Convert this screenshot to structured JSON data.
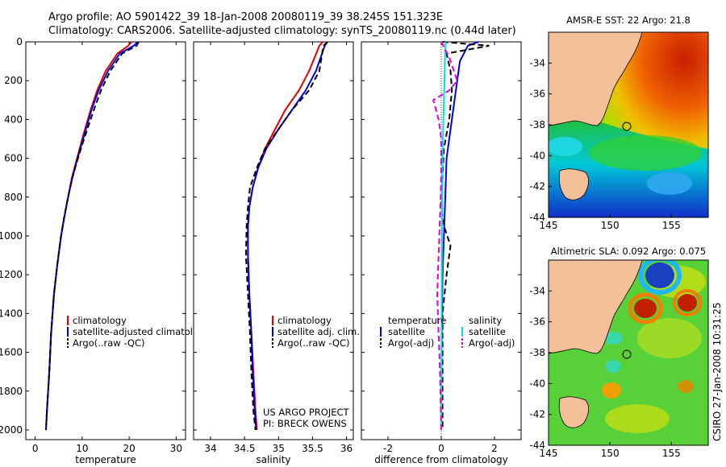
{
  "header": {
    "title_line1": "Argo profile: AO 5901422_39 18-Jan-2008 20080119_39 38.245S 151.323E",
    "title_line2": "Climatology: CARS2006. Satellite-adjusted climatology: synTS_20080119.nc (0.44d later)"
  },
  "footer_credit": "CSIRO 27-Jan-2008 10:31:25",
  "project_note": {
    "line1": "US ARGO PROJECT",
    "line2": "PI: BRECK OWENS"
  },
  "colors": {
    "climatology": "#e00000",
    "satellite": "#0000e0",
    "argo": "#000000",
    "sal_satellite": "#00e0e0",
    "sal_argo": "#e000e0",
    "land": "#f4c09a"
  },
  "chart_data": [
    {
      "type": "line",
      "id": "temperature",
      "xlabel": "temperature",
      "ylabel": "",
      "xlim": [
        -2,
        32
      ],
      "ylim": [
        2050,
        0
      ],
      "xticks": [
        0,
        10,
        20,
        30
      ],
      "yticks": [
        0,
        200,
        400,
        600,
        800,
        1000,
        1200,
        1400,
        1600,
        1800,
        2000
      ],
      "legend": [
        "climatology",
        "satellite-adjusted climatology",
        "Argo(..raw -QC)"
      ],
      "series": [
        {
          "name": "climatology",
          "style": "solid",
          "color_key": "climatology",
          "x": [
            20.5,
            19.8,
            17.5,
            15.0,
            13.2,
            11.8,
            10.0,
            8.9,
            7.8,
            7.0,
            6.2,
            5.5,
            4.7,
            4.0,
            3.4,
            3.0,
            2.5,
            2.3
          ],
          "y": [
            0,
            20,
            60,
            150,
            250,
            350,
            500,
            600,
            700,
            800,
            900,
            1000,
            1150,
            1300,
            1500,
            1700,
            1900,
            2000
          ]
        },
        {
          "name": "satellite-adjusted climatology",
          "style": "solid",
          "color_key": "satellite",
          "x": [
            21.8,
            21.0,
            18.0,
            15.5,
            13.5,
            12.0,
            10.2,
            9.0,
            7.9,
            7.0,
            6.2,
            5.5,
            4.7,
            4.0,
            3.4,
            3.0,
            2.5,
            2.3
          ],
          "y": [
            0,
            20,
            60,
            150,
            250,
            350,
            500,
            600,
            700,
            800,
            900,
            1000,
            1150,
            1300,
            1500,
            1700,
            1900,
            2000
          ]
        },
        {
          "name": "Argo(..raw -QC)",
          "style": "dashed",
          "color_key": "argo",
          "x": [
            22.0,
            21.6,
            18.5,
            16.0,
            14.0,
            12.5,
            10.4,
            9.1,
            7.9,
            7.0,
            6.2,
            5.5,
            4.7,
            4.0,
            3.4,
            3.0,
            2.5,
            2.3
          ],
          "y": [
            0,
            20,
            60,
            150,
            250,
            350,
            500,
            600,
            700,
            800,
            900,
            1000,
            1150,
            1300,
            1500,
            1700,
            1900,
            2000
          ]
        }
      ]
    },
    {
      "type": "line",
      "id": "salinity",
      "xlabel": "salinity",
      "ylabel": "",
      "xlim": [
        33.75,
        36.1
      ],
      "ylim": [
        2050,
        0
      ],
      "xticks": [
        34,
        34.5,
        35,
        35.5,
        36
      ],
      "legend": [
        "climatology",
        "satellite adj. clim.",
        "Argo(..raw -QC)"
      ],
      "series": [
        {
          "name": "climatology",
          "style": "solid",
          "color_key": "climatology",
          "x": [
            35.65,
            35.6,
            35.45,
            35.3,
            35.1,
            34.95,
            34.8,
            34.7,
            34.62,
            34.57,
            34.55,
            34.55,
            34.57,
            34.6,
            34.63,
            34.66,
            34.68
          ],
          "y": [
            0,
            20,
            150,
            250,
            350,
            450,
            550,
            650,
            750,
            850,
            950,
            1100,
            1300,
            1500,
            1700,
            1900,
            2000
          ]
        },
        {
          "name": "satellite adj. clim.",
          "style": "solid",
          "color_key": "satellite",
          "x": [
            35.72,
            35.68,
            35.55,
            35.4,
            35.2,
            35.0,
            34.82,
            34.7,
            34.62,
            34.57,
            34.55,
            34.55,
            34.57,
            34.6,
            34.62,
            34.65,
            34.67
          ],
          "y": [
            0,
            20,
            150,
            250,
            350,
            450,
            550,
            650,
            750,
            850,
            950,
            1100,
            1300,
            1500,
            1700,
            1900,
            2000
          ]
        },
        {
          "name": "Argo(..raw -QC)",
          "style": "dashed",
          "color_key": "argo",
          "x": [
            35.72,
            35.66,
            35.6,
            35.45,
            35.2,
            35.0,
            34.8,
            34.68,
            34.58,
            34.55,
            34.53,
            34.52,
            34.55,
            34.58,
            34.6,
            34.63,
            34.66
          ],
          "y": [
            0,
            20,
            150,
            250,
            350,
            450,
            550,
            650,
            750,
            850,
            950,
            1100,
            1300,
            1500,
            1700,
            1900,
            2000
          ]
        }
      ]
    },
    {
      "type": "line",
      "id": "difference",
      "xlabel": "difference from climatology",
      "ylabel": "",
      "xlim": [
        -3,
        3
      ],
      "ylim": [
        2050,
        0
      ],
      "xticks": [
        -2,
        0,
        2
      ],
      "legend_temperature_title": "temperature",
      "legend_salinity_title": "salinity",
      "legend_temperature": [
        "satellite",
        "Argo(-adj)"
      ],
      "legend_salinity": [
        "satellite",
        "Argo(-adj)"
      ],
      "series": [
        {
          "name": "satellite",
          "group": "temperature",
          "style": "solid",
          "color_key": "satellite",
          "x": [
            1.4,
            1.0,
            0.7,
            0.6,
            0.5,
            0.4,
            0.3,
            0.2,
            0.15,
            0.1,
            0.05,
            0.02,
            0.0,
            0.0
          ],
          "y": [
            0,
            20,
            100,
            200,
            300,
            400,
            500,
            600,
            800,
            1000,
            1200,
            1500,
            1800,
            2000
          ]
        },
        {
          "name": "Argo(-adj)",
          "group": "temperature",
          "style": "dashed",
          "color_key": "argo",
          "x": [
            0.05,
            1.8,
            0.2,
            0.35,
            0.4,
            0.3,
            0.1,
            0.05,
            0.0,
            0.1,
            0.35,
            0.2,
            0.05,
            0.05,
            0.05
          ],
          "y": [
            0,
            20,
            60,
            150,
            250,
            400,
            550,
            700,
            850,
            950,
            1050,
            1200,
            1400,
            1700,
            2000
          ]
        },
        {
          "name": "satellite",
          "group": "salinity",
          "style": "solid",
          "color_key": "sal_satellite",
          "x": [
            0.15,
            0.12,
            0.08,
            0.05,
            0.03,
            0.02,
            0.01,
            0.0
          ],
          "y": [
            0,
            200,
            400,
            600,
            800,
            1200,
            1600,
            2000
          ]
        },
        {
          "name": "Argo(-adj)",
          "group": "salinity",
          "style": "dashed",
          "color_key": "sal_argo",
          "x": [
            0.0,
            0.3,
            0.6,
            0.3,
            -0.3,
            -0.1,
            0.0,
            0.0,
            -0.05,
            -0.1,
            -0.15,
            -0.1,
            -0.05,
            0.0
          ],
          "y": [
            0,
            80,
            200,
            250,
            300,
            400,
            500,
            700,
            900,
            1100,
            1300,
            1500,
            1700,
            2000
          ]
        }
      ]
    },
    {
      "type": "heatmap",
      "id": "amsr-sst",
      "title": "AMSR-E SST: 22 Argo: 21.8",
      "xlim": [
        145,
        158
      ],
      "ylim": [
        -44,
        -32
      ],
      "xticks": [
        145,
        150,
        155
      ],
      "yticks": [
        -34,
        -36,
        -38,
        -40,
        -42,
        -44
      ],
      "profile_location": {
        "lon": 151.323,
        "lat": -38.245
      }
    },
    {
      "type": "heatmap",
      "id": "altimetric-sla",
      "title": "Altimetric SLA: 0.092 Argo: 0.075",
      "xlim": [
        145,
        158
      ],
      "ylim": [
        -44,
        -32
      ],
      "xticks": [
        145,
        150,
        155
      ],
      "yticks": [
        -34,
        -36,
        -38,
        -40,
        -42,
        -44
      ],
      "profile_location": {
        "lon": 151.323,
        "lat": -38.245
      }
    }
  ]
}
